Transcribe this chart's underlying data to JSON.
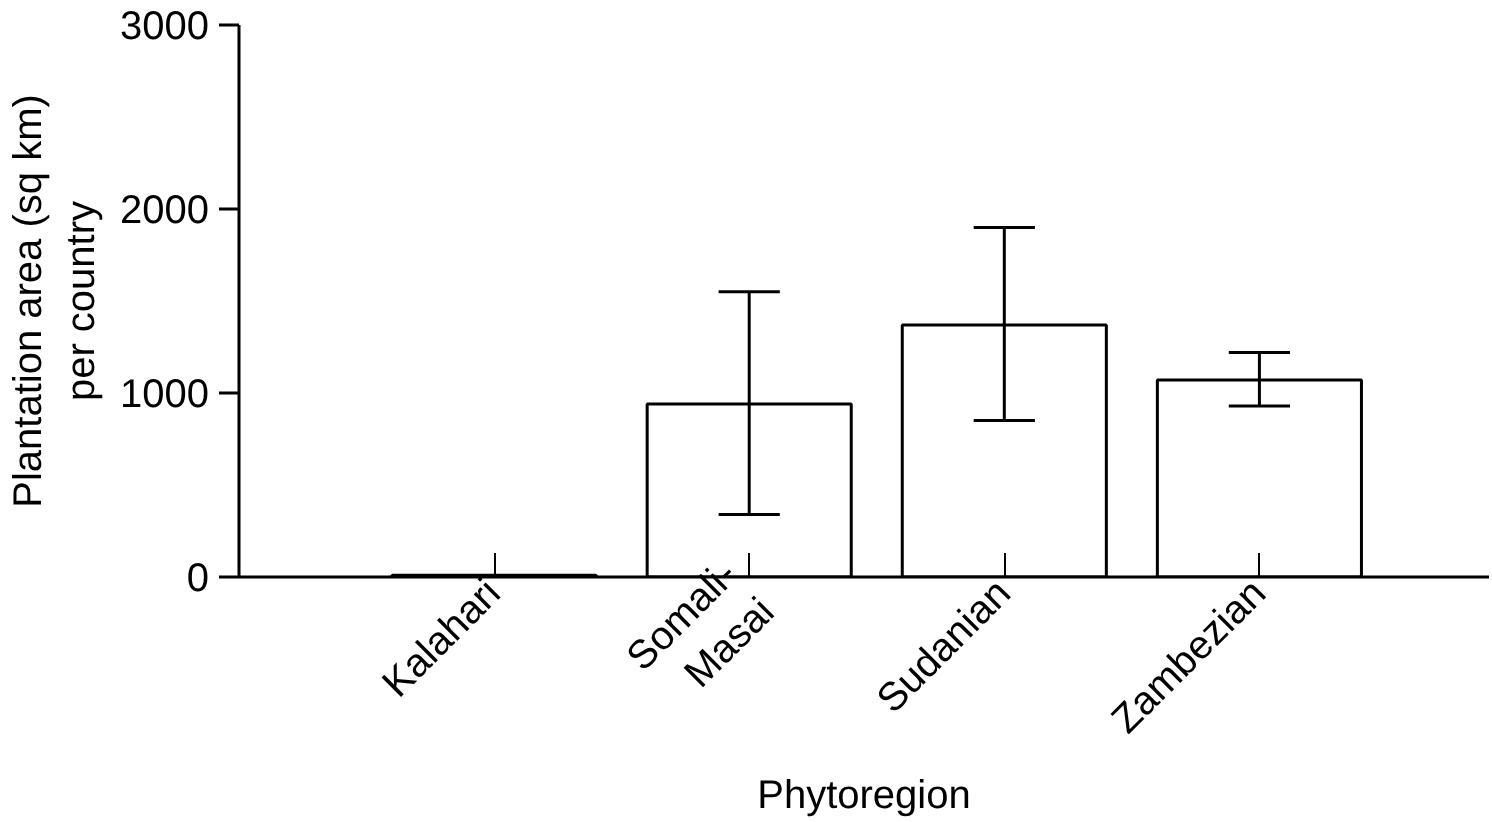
{
  "chart_data": {
    "type": "bar",
    "xlabel": "Phytoregion",
    "ylabel": "Plantation area (sq km)\nper country",
    "categories": [
      "Kalahari",
      "Somali-\nMasai",
      "Sudanian",
      "Zambezian"
    ],
    "values": [
      10,
      940,
      1370,
      1070
    ],
    "errors": [
      null,
      [
        340,
        1550
      ],
      [
        850,
        1900
      ],
      [
        930,
        1220
      ]
    ],
    "color": "#ffffff",
    "ylim": [
      0,
      3000
    ],
    "yticks": [
      0,
      1000,
      2000,
      3000
    ],
    "grid": false
  }
}
